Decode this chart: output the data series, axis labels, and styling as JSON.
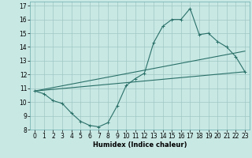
{
  "bg_color": "#c8e8e4",
  "grid_color": "#a0c8c4",
  "line_color": "#2a7068",
  "x_min": 0,
  "x_max": 23,
  "y_min": 8,
  "y_max": 17,
  "xlabel": "Humidex (Indice chaleur)",
  "series": [
    {
      "x": [
        0,
        1,
        2,
        3,
        4,
        5,
        6,
        7,
        8,
        9,
        10,
        11,
        12,
        13,
        14,
        15,
        16,
        17,
        18,
        19,
        20,
        21,
        22,
        23
      ],
      "y": [
        10.8,
        10.6,
        10.1,
        9.9,
        9.2,
        8.6,
        8.3,
        8.2,
        8.5,
        9.7,
        11.2,
        11.7,
        12.1,
        14.3,
        15.5,
        16.0,
        16.0,
        16.8,
        14.9,
        15.0,
        14.4,
        14.0,
        13.3,
        12.2
      ]
    },
    {
      "x": [
        0,
        23
      ],
      "y": [
        10.8,
        12.2
      ]
    },
    {
      "x": [
        0,
        23
      ],
      "y": [
        10.8,
        13.7
      ]
    }
  ],
  "marker": "+",
  "markersize": 3,
  "linewidth": 0.8,
  "axis_fontsize": 6,
  "tick_fontsize": 5.5
}
